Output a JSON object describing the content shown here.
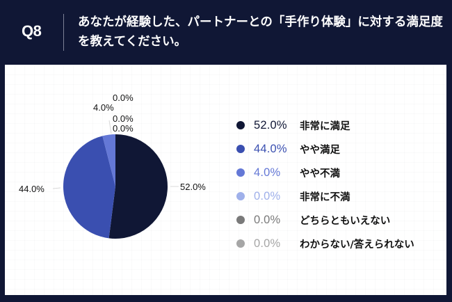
{
  "header": {
    "question_number": "Q8",
    "title": "あなたが経験した、パートナーとの「手作り体験」に対する満足度を教えてください。"
  },
  "colors": {
    "background": "#101735",
    "panel": "#ffffff",
    "very_satisfied": "#101735",
    "somewhat_satisfied": "#3a4fb0",
    "somewhat_dissatisfied": "#6478d6",
    "very_dissatisfied": "#9fb0ea",
    "neither": "#7a7a7a",
    "dont_know": "#a6a6a6"
  },
  "chart_data": {
    "type": "pie",
    "title": "あなたが経験した、パートナーとの「手作り体験」に対する満足度を教えてください。",
    "categories": [
      "非常に満足",
      "やや満足",
      "やや不満",
      "非常に不満",
      "どちらともいえない",
      "わからない/答えられない"
    ],
    "values": [
      52.0,
      44.0,
      4.0,
      0.0,
      0.0,
      0.0
    ],
    "unit": "%",
    "colors": [
      "#101735",
      "#3a4fb0",
      "#6478d6",
      "#9fb0ea",
      "#7a7a7a",
      "#a6a6a6"
    ],
    "start_angle": "12 o'clock, clockwise",
    "legend_position": "right"
  },
  "pie_labels": {
    "very_satisfied": "52.0%",
    "somewhat_satisfied": "44.0%",
    "somewhat_dissatisfied": "4.0%",
    "very_dissatisfied": "0.0%",
    "neither": "0.0%",
    "dont_know": "0.0%"
  },
  "legend": [
    {
      "pct": "52.0%",
      "label": "非常に満足",
      "color": "#101735",
      "pct_color": "#101735"
    },
    {
      "pct": "44.0%",
      "label": "やや満足",
      "color": "#3a4fb0",
      "pct_color": "#3a4fb0"
    },
    {
      "pct": "4.0%",
      "label": "やや不満",
      "color": "#6478d6",
      "pct_color": "#6478d6"
    },
    {
      "pct": "0.0%",
      "label": "非常に不満",
      "color": "#9fb0ea",
      "pct_color": "#9fb0ea"
    },
    {
      "pct": "0.0%",
      "label": "どちらともいえない",
      "color": "#7a7a7a",
      "pct_color": "#7a7a7a"
    },
    {
      "pct": "0.0%",
      "label": "わからない/答えられない",
      "color": "#a6a6a6",
      "pct_color": "#a6a6a6"
    }
  ]
}
